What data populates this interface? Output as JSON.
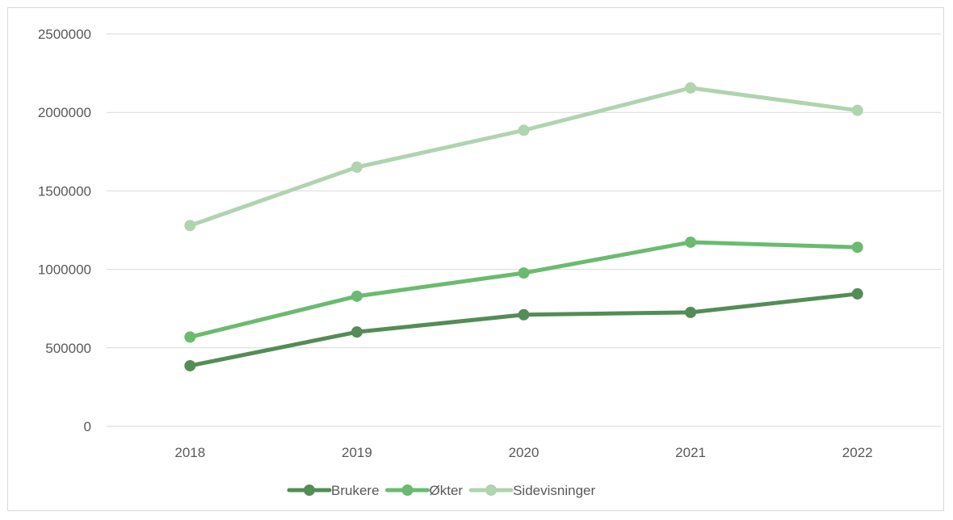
{
  "chart_data": {
    "type": "line",
    "title": "",
    "xlabel": "",
    "ylabel": "",
    "categories": [
      "2018",
      "2019",
      "2020",
      "2021",
      "2022"
    ],
    "ylim": [
      0,
      2500000
    ],
    "yticks": [
      "0",
      "500000",
      "1000000",
      "1500000",
      "2000000",
      "2500000"
    ],
    "grid": true,
    "legend_position": "bottom",
    "series": [
      {
        "name": "Brukere",
        "color": "#548c57",
        "values": [
          386000,
          601000,
          711000,
          726000,
          844000
        ]
      },
      {
        "name": "Økter",
        "color": "#6abb6f",
        "values": [
          569000,
          829000,
          977000,
          1173000,
          1141000
        ]
      },
      {
        "name": "Sidevisninger",
        "color": "#b0d3b0",
        "values": [
          1279000,
          1651000,
          1886000,
          2156000,
          2013000
        ]
      }
    ]
  }
}
